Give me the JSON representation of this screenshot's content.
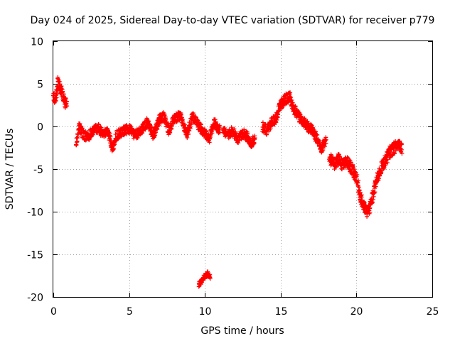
{
  "chart_data": {
    "type": "scatter",
    "title": "Day 024 of 2025, Sidereal Day-to-day VTEC variation (SDTVAR) for receiver p779",
    "xlabel": "GPS time / hours",
    "ylabel": "SDTVAR / TECUs",
    "xlim": [
      0,
      25
    ],
    "ylim": [
      -20,
      10
    ],
    "xticks": [
      0,
      5,
      10,
      15,
      20,
      25
    ],
    "yticks": [
      -20,
      -15,
      -10,
      -5,
      0,
      5,
      10
    ],
    "xtick_labels": [
      "0",
      "5",
      "10",
      "15",
      "20",
      "25"
    ],
    "ytick_labels": [
      "-20",
      "-15",
      "-10",
      "-5",
      "0",
      "5",
      "10"
    ],
    "grid": true,
    "marker": "+",
    "series": [
      {
        "name": "SDTVAR",
        "color": "#ff0000",
        "segments": [
          {
            "x": [
              0.0,
              0.15,
              0.3,
              0.45,
              0.6,
              0.75,
              0.9
            ],
            "y": [
              3.5,
              3.2,
              5.2,
              4.5,
              3.8,
              3.0,
              2.5
            ],
            "spread": 0.7
          },
          {
            "x": [
              1.5,
              1.7,
              2.0,
              2.3,
              2.6,
              3.0,
              3.3,
              3.6,
              3.9,
              4.2,
              4.6,
              5.0,
              5.4,
              5.8,
              6.2,
              6.6,
              7.0,
              7.3,
              7.6,
              8.0,
              8.4,
              8.8,
              9.2,
              9.6,
              10.0,
              10.3,
              10.6,
              11.0
            ],
            "y": [
              -2.0,
              0.0,
              -1.0,
              -1.2,
              -0.5,
              -0.2,
              -1.0,
              -0.5,
              -2.5,
              -1.0,
              -0.5,
              -0.3,
              -1.0,
              -0.5,
              0.5,
              -1.0,
              0.8,
              1.2,
              -0.5,
              1.0,
              1.2,
              -1.0,
              1.2,
              0.0,
              -0.8,
              -1.5,
              0.5,
              -0.5
            ],
            "spread": 0.55
          },
          {
            "x": [
              11.2,
              11.5,
              11.8,
              12.2,
              12.5,
              12.8,
              13.0,
              13.3
            ],
            "y": [
              -0.5,
              -1.0,
              -0.5,
              -1.5,
              -0.8,
              -1.2,
              -2.0,
              -1.5
            ],
            "spread": 0.55
          },
          {
            "x": [
              13.8,
              14.1,
              14.4,
              14.7,
              15.0,
              15.3,
              15.6,
              15.9,
              16.2,
              16.5,
              16.8,
              17.1,
              17.4,
              17.7,
              18.0
            ],
            "y": [
              0.0,
              -0.5,
              0.5,
              1.0,
              2.5,
              3.2,
              3.5,
              2.0,
              1.2,
              0.5,
              0.0,
              -0.5,
              -1.5,
              -2.5,
              -1.5
            ],
            "spread": 0.6
          },
          {
            "x": [
              18.2,
              18.5,
              18.8,
              19.1,
              19.4,
              19.7,
              20.0,
              20.3,
              20.5,
              20.7,
              20.9,
              21.1,
              21.3,
              21.6,
              21.9,
              22.2,
              22.5,
              22.8,
              23.0
            ],
            "y": [
              -3.5,
              -4.5,
              -3.8,
              -4.5,
              -4.2,
              -5.0,
              -6.0,
              -8.5,
              -9.5,
              -10.0,
              -9.5,
              -8.0,
              -6.5,
              -5.0,
              -4.0,
              -3.0,
              -2.5,
              -2.0,
              -2.5
            ],
            "spread": 0.7
          },
          {
            "x": [
              9.6,
              9.75,
              9.9,
              10.05,
              10.2,
              10.35
            ],
            "y": [
              -18.5,
              -18.2,
              -17.8,
              -17.5,
              -17.3,
              -17.6
            ],
            "spread": 0.3
          }
        ]
      }
    ]
  }
}
